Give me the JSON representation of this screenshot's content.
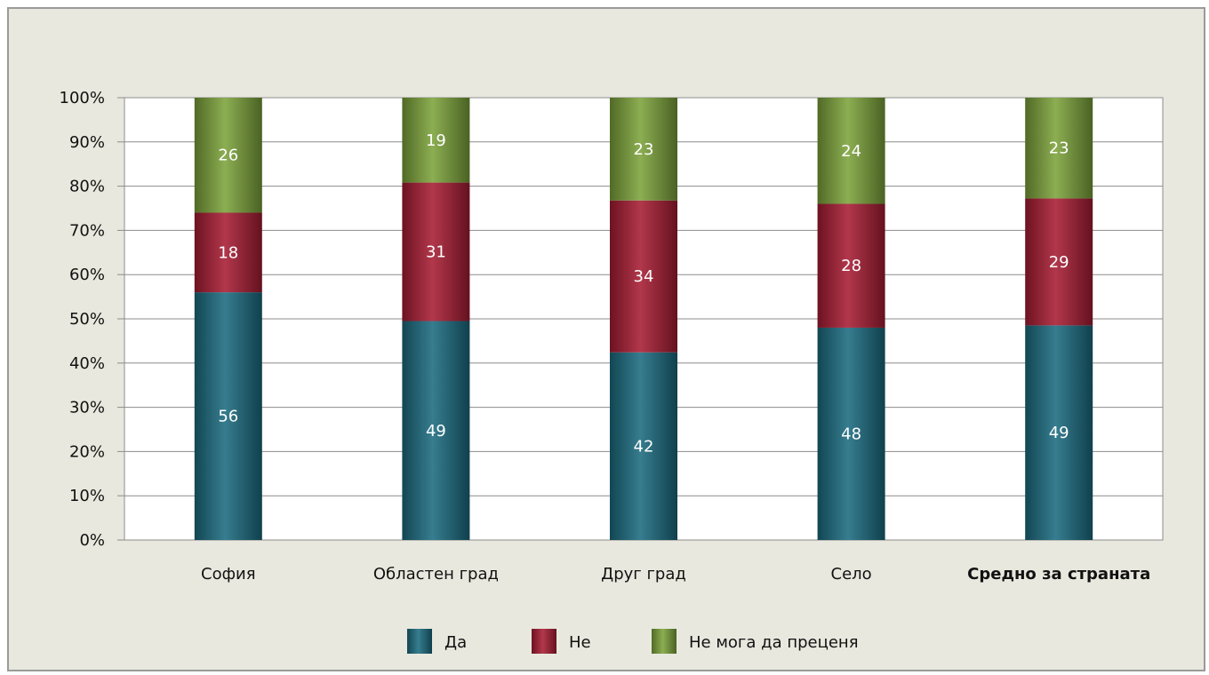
{
  "chart_data": {
    "type": "bar",
    "stacked": true,
    "percent": true,
    "categories": [
      "София",
      "Областен град",
      "Друг град",
      "Село",
      "Средно за страната"
    ],
    "bold_categories": [
      "Средно за страната"
    ],
    "series": [
      {
        "name": "Да",
        "values": [
          56,
          49,
          42,
          48,
          49
        ],
        "color": "#1b6b80"
      },
      {
        "name": "Не",
        "values": [
          18,
          31,
          34,
          28,
          29
        ],
        "color": "#a81c33"
      },
      {
        "name": "Не мога да преценя",
        "values": [
          26,
          19,
          23,
          24,
          23
        ],
        "color": "#7ca33a"
      }
    ],
    "ylim": [
      0,
      100
    ],
    "yticks": [
      "0%",
      "10%",
      "20%",
      "30%",
      "40%",
      "50%",
      "60%",
      "70%",
      "80%",
      "90%",
      "100%"
    ],
    "grid": true,
    "legend_position": "bottom"
  },
  "colors": {
    "background": "#e8e8de",
    "plot_background": "#ffffff",
    "frame_border": "#9a9a98"
  }
}
